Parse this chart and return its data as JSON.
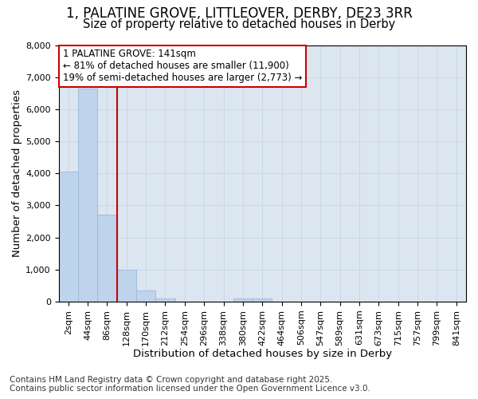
{
  "title_line1": "1, PALATINE GROVE, LITTLEOVER, DERBY, DE23 3RR",
  "title_line2": "Size of property relative to detached houses in Derby",
  "xlabel": "Distribution of detached houses by size in Derby",
  "ylabel": "Number of detached properties",
  "categories": [
    "2sqm",
    "44sqm",
    "86sqm",
    "128sqm",
    "170sqm",
    "212sqm",
    "254sqm",
    "296sqm",
    "338sqm",
    "380sqm",
    "422sqm",
    "464sqm",
    "506sqm",
    "547sqm",
    "589sqm",
    "631sqm",
    "673sqm",
    "715sqm",
    "757sqm",
    "799sqm",
    "841sqm"
  ],
  "values": [
    4050,
    6650,
    2700,
    1000,
    340,
    110,
    0,
    0,
    0,
    100,
    100,
    0,
    0,
    0,
    0,
    0,
    0,
    0,
    0,
    0,
    0
  ],
  "bar_color": "#bed3ec",
  "bar_edge_color": "#9ab8d8",
  "red_line_x": 2.5,
  "annotation_title": "1 PALATINE GROVE: 141sqm",
  "annotation_line1": "← 81% of detached houses are smaller (11,900)",
  "annotation_line2": "19% of semi-detached houses are larger (2,773) →",
  "annotation_box_facecolor": "#ffffff",
  "annotation_box_edgecolor": "#cc0000",
  "red_line_color": "#cc0000",
  "grid_color": "#c8d4e8",
  "bg_color": "#dce6f0",
  "fig_bg_color": "#ffffff",
  "ylim": [
    0,
    8000
  ],
  "yticks": [
    0,
    1000,
    2000,
    3000,
    4000,
    5000,
    6000,
    7000,
    8000
  ],
  "title_fontsize": 12,
  "subtitle_fontsize": 10.5,
  "axis_label_fontsize": 9.5,
  "tick_fontsize": 8,
  "annotation_fontsize": 8.5,
  "footnote_fontsize": 7.5
}
